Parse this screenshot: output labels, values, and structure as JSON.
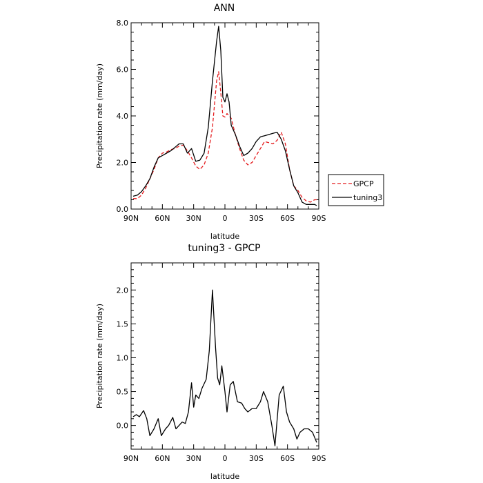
{
  "chart_data": [
    {
      "type": "line",
      "title": "ANN",
      "xlabel": "latitude",
      "ylabel": "Precipitation rate (mm/day)",
      "xlim": [
        90,
        -90
      ],
      "ylim": [
        0,
        8
      ],
      "xticks": [
        90,
        60,
        30,
        0,
        -30,
        -60,
        -90
      ],
      "xtick_labels": [
        "90N",
        "60N",
        "30N",
        "0",
        "30S",
        "60S",
        "90S"
      ],
      "yticks": [
        0,
        2,
        4,
        6,
        8
      ],
      "ytick_labels": [
        "0.0",
        "2.0",
        "4.0",
        "6.0",
        "8.0"
      ],
      "legend_position": "right",
      "series": [
        {
          "name": "GPCP",
          "color": "#e41a1c",
          "dashed": true,
          "x": [
            88,
            84,
            80,
            76,
            72,
            68,
            64,
            60,
            56,
            52,
            48,
            44,
            40,
            36,
            32,
            28,
            24,
            20,
            16,
            12,
            8,
            6,
            4,
            2,
            0,
            -2,
            -6,
            -10,
            -14,
            -18,
            -22,
            -26,
            -30,
            -34,
            -38,
            -42,
            -46,
            -50,
            -54,
            -58,
            -62,
            -66,
            -70,
            -74,
            -78,
            -82,
            -86,
            -88
          ],
          "y": [
            0.45,
            0.45,
            0.6,
            0.9,
            1.3,
            1.7,
            2.2,
            2.4,
            2.45,
            2.55,
            2.6,
            2.7,
            2.75,
            2.5,
            2.2,
            1.85,
            1.7,
            1.9,
            2.4,
            3.5,
            5.5,
            5.9,
            5.0,
            4.0,
            3.95,
            4.1,
            3.9,
            3.2,
            2.6,
            2.1,
            1.9,
            2.0,
            2.3,
            2.6,
            2.9,
            2.85,
            2.8,
            2.95,
            3.3,
            2.8,
            1.7,
            1.0,
            0.8,
            0.5,
            0.35,
            0.3,
            0.4,
            0.4
          ]
        },
        {
          "name": "tuning3",
          "color": "#000000",
          "dashed": false,
          "x": [
            88,
            84,
            80,
            76,
            72,
            68,
            64,
            60,
            56,
            52,
            48,
            44,
            40,
            36,
            32,
            28,
            24,
            20,
            16,
            12,
            8,
            6,
            4,
            2,
            0,
            -2,
            -4,
            -6,
            -10,
            -14,
            -18,
            -22,
            -26,
            -30,
            -34,
            -38,
            -42,
            -46,
            -50,
            -54,
            -58,
            -62,
            -66,
            -70,
            -74,
            -78,
            -82,
            -86,
            -88
          ],
          "y": [
            0.55,
            0.6,
            0.75,
            1.0,
            1.3,
            1.8,
            2.2,
            2.3,
            2.4,
            2.5,
            2.65,
            2.8,
            2.8,
            2.4,
            2.6,
            2.05,
            2.1,
            2.4,
            3.5,
            5.5,
            7.2,
            7.85,
            6.8,
            4.8,
            4.6,
            4.95,
            4.6,
            3.6,
            3.2,
            2.7,
            2.3,
            2.4,
            2.6,
            2.9,
            3.1,
            3.15,
            3.2,
            3.25,
            3.3,
            3.0,
            2.5,
            1.7,
            1.0,
            0.7,
            0.3,
            0.2,
            0.2,
            0.2,
            0.15
          ]
        }
      ]
    },
    {
      "type": "line",
      "title": "tuning3 - GPCP",
      "xlabel": "latitude",
      "ylabel": "Precipitation rate (mm/day)",
      "xlim": [
        90,
        -90
      ],
      "ylim": [
        -0.35,
        2.4
      ],
      "xticks": [
        90,
        60,
        30,
        0,
        -30,
        -60,
        -90
      ],
      "xtick_labels": [
        "90N",
        "60N",
        "30N",
        "0",
        "30S",
        "60S",
        "90S"
      ],
      "yticks": [
        0,
        0.5,
        1,
        1.5,
        2
      ],
      "ytick_labels": [
        "0.0",
        "0.5",
        "1.0",
        "1.5",
        "2.0"
      ],
      "series": [
        {
          "color": "#000000",
          "dashed": false,
          "x": [
            88,
            85,
            82,
            78,
            75,
            72,
            68,
            64,
            61,
            57,
            54,
            50,
            47,
            44,
            41,
            38,
            35,
            32,
            30,
            28,
            25,
            22,
            18,
            15,
            12,
            9,
            7,
            5,
            3,
            0,
            -2,
            -5,
            -8,
            -12,
            -16,
            -19,
            -22,
            -26,
            -30,
            -34,
            -37,
            -41,
            -45,
            -48,
            -52,
            -56,
            -59,
            -62,
            -66,
            -69,
            -72,
            -76,
            -80,
            -84,
            -88
          ],
          "y": [
            0.13,
            0.16,
            0.13,
            0.22,
            0.1,
            -0.15,
            -0.05,
            0.1,
            -0.15,
            -0.05,
            0.0,
            0.12,
            -0.05,
            0.0,
            0.05,
            0.03,
            0.2,
            0.63,
            0.27,
            0.45,
            0.4,
            0.55,
            0.68,
            1.1,
            2.0,
            1.15,
            0.7,
            0.6,
            0.88,
            0.5,
            0.2,
            0.6,
            0.65,
            0.35,
            0.33,
            0.25,
            0.2,
            0.25,
            0.25,
            0.35,
            0.5,
            0.35,
            0.0,
            -0.3,
            0.45,
            0.58,
            0.2,
            0.05,
            -0.05,
            -0.2,
            -0.1,
            -0.05,
            -0.05,
            -0.1,
            -0.25
          ]
        }
      ]
    }
  ]
}
